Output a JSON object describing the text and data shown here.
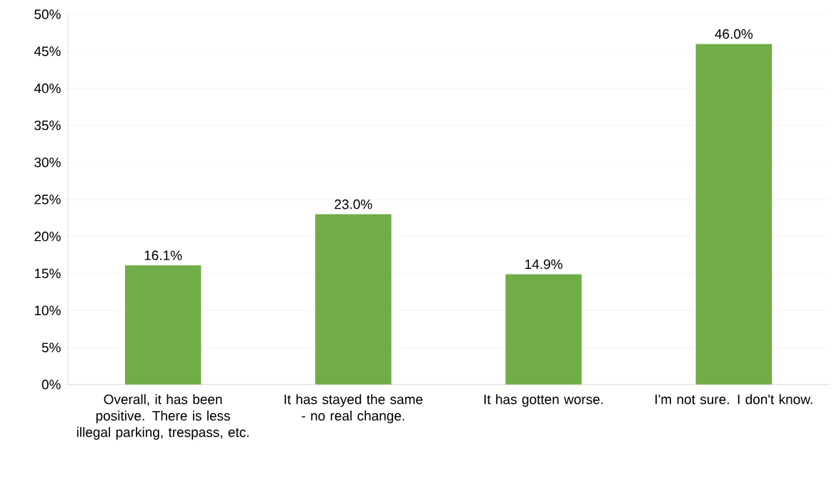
{
  "chart_data": {
    "type": "bar",
    "categories": [
      "Overall, it has been positive. There is less illegal parking, trespass, etc.",
      "It has stayed the same - no real change.",
      "It has gotten worse.",
      "I'm not sure. I don't know."
    ],
    "values": [
      16.1,
      23.0,
      14.9,
      46.0
    ],
    "value_labels": [
      "16.1%",
      "23.0%",
      "14.9%",
      "46.0%"
    ],
    "color": "#70ad47",
    "ylim": [
      0,
      50
    ],
    "yticks": [
      {
        "value": 0,
        "label": "0%"
      },
      {
        "value": 5,
        "label": "5%"
      },
      {
        "value": 10,
        "label": "10%"
      },
      {
        "value": 15,
        "label": "15%"
      },
      {
        "value": 20,
        "label": "20%"
      },
      {
        "value": 25,
        "label": "25%"
      },
      {
        "value": 30,
        "label": "30%"
      },
      {
        "value": 35,
        "label": "35%"
      },
      {
        "value": 40,
        "label": "40%"
      },
      {
        "value": 45,
        "label": "45%"
      },
      {
        "value": 50,
        "label": "50%"
      }
    ],
    "grid": "y"
  }
}
